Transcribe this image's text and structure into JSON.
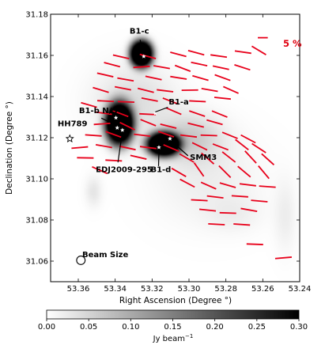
{
  "chart_data": {
    "type": "polarization-map",
    "xlabel": "Right Ascension (Degree °)",
    "ylabel": "Declination (Degree °)",
    "xlim": [
      53.375,
      53.24
    ],
    "ylim": [
      31.05,
      31.18
    ],
    "xticks": [
      53.36,
      53.34,
      53.32,
      53.3,
      53.28,
      53.26,
      53.24
    ],
    "xtick_labels": [
      "53.36",
      "53.34",
      "53.32",
      "53.30",
      "53.28",
      "53.26",
      "53.24"
    ],
    "yticks": [
      31.06,
      31.08,
      31.1,
      31.12,
      31.14,
      31.16,
      31.18
    ],
    "ytick_labels": [
      "31.06",
      "31.08",
      "31.10",
      "31.12",
      "31.14",
      "31.16",
      "31.18"
    ],
    "scale_label": "5 %",
    "beam_label": "Beam Size",
    "colorbar": {
      "min": 0.0,
      "max": 0.3,
      "ticks": [
        0.0,
        0.05,
        0.1,
        0.15,
        0.2,
        0.25,
        0.3
      ],
      "tick_labels": [
        "0.00",
        "0.05",
        "0.10",
        "0.15",
        "0.20",
        "0.25",
        "0.30"
      ],
      "label_main": "Jy beam",
      "label_sup": "−1",
      "colormap": "gray_r"
    },
    "intensity_blobs": [
      {
        "ra": 53.326,
        "dec": 31.161,
        "peak": 0.3,
        "sigma_ra": 0.0045,
        "sigma_dec": 0.0048
      },
      {
        "ra": 53.338,
        "dec": 31.127,
        "peak": 0.3,
        "sigma_ra": 0.0055,
        "sigma_dec": 0.0075
      },
      {
        "ra": 53.314,
        "dec": 31.117,
        "peak": 0.3,
        "sigma_ra": 0.0065,
        "sigma_dec": 0.0042
      },
      {
        "ra": 53.3,
        "dec": 31.12,
        "peak": 0.06,
        "sigma_ra": 0.012,
        "sigma_dec": 0.008
      },
      {
        "ra": 53.33,
        "dec": 31.138,
        "peak": 0.04,
        "sigma_ra": 0.015,
        "sigma_dec": 0.012
      },
      {
        "ra": 53.29,
        "dec": 31.1,
        "peak": 0.02,
        "sigma_ra": 0.02,
        "sigma_dec": 0.015
      },
      {
        "ra": 53.352,
        "dec": 31.094,
        "peak": 0.03,
        "sigma_ra": 0.003,
        "sigma_dec": 0.005
      },
      {
        "ra": 53.248,
        "dec": 31.082,
        "peak": 0.02,
        "sigma_ra": 0.004,
        "sigma_dec": 0.012
      },
      {
        "ra": 53.276,
        "dec": 31.083,
        "peak": 0.015,
        "sigma_ra": 0.01,
        "sigma_dec": 0.006
      }
    ],
    "sources": [
      {
        "name": "B1-c",
        "stars": [
          {
            "ra": 53.3245,
            "dec": 31.1595
          }
        ],
        "text": {
          "ra": 53.3322,
          "dec": 31.1706
        },
        "line": [
          {
            "ra": 53.3265,
            "dec": 31.1676
          },
          {
            "ra": 53.3245,
            "dec": 31.1605
          }
        ]
      },
      {
        "name": "B1-a",
        "stars": [
          {
            "ra": 53.3183,
            "dec": 31.1318
          }
        ],
        "text": {
          "ra": 53.311,
          "dec": 31.1362
        },
        "line": [
          {
            "ra": 53.3114,
            "dec": 31.1348
          },
          {
            "ra": 53.3183,
            "dec": 31.1325
          }
        ]
      },
      {
        "name": "B1-b N/S",
        "stars": [
          {
            "ra": 53.3396,
            "dec": 31.1297
          },
          {
            "ra": 53.3389,
            "dec": 31.1248
          }
        ],
        "text": {
          "ra": 53.3596,
          "dec": 31.132
        },
        "line": [
          {
            "ra": 53.3475,
            "dec": 31.1295
          },
          {
            "ra": 53.3405,
            "dec": 31.1265
          }
        ]
      },
      {
        "name": "HH789",
        "stars": [
          {
            "ra": 53.3646,
            "dec": 31.1195
          }
        ],
        "text": {
          "ra": 53.3712,
          "dec": 31.1255
        },
        "line": []
      },
      {
        "name": "EDJ2009-295",
        "stars": [
          {
            "ra": 53.3361,
            "dec": 31.1237
          }
        ],
        "text": {
          "ra": 53.3505,
          "dec": 31.1032
        },
        "line": [
          {
            "ra": 53.3385,
            "dec": 31.108
          },
          {
            "ra": 53.3365,
            "dec": 31.1205
          }
        ]
      },
      {
        "name": "SMM3",
        "stars": [
          {
            "ra": 53.3103,
            "dec": 31.1195
          }
        ],
        "text": {
          "ra": 53.2995,
          "dec": 31.1092
        },
        "line": [
          {
            "ra": 53.3005,
            "dec": 31.1112
          },
          {
            "ra": 53.3085,
            "dec": 31.1175
          }
        ]
      },
      {
        "name": "B1-d",
        "stars": [
          {
            "ra": 53.3163,
            "dec": 31.1153
          }
        ],
        "text": {
          "ra": 53.3208,
          "dec": 31.1032
        },
        "line": [
          {
            "ra": 53.3165,
            "dec": 31.1062
          },
          {
            "ra": 53.3163,
            "dec": 31.1135
          }
        ]
      }
    ],
    "scale_bar": {
      "ra1": 53.2627,
      "ra2": 53.2573,
      "dec": 31.1686
    },
    "beam": {
      "ra": 53.3586,
      "dec": 31.0604,
      "radius_ra": 0.0023
    },
    "vectors": [
      {
        "ra": 53.3368,
        "dec": 31.1593,
        "pa": -13
      },
      {
        "ra": 53.3223,
        "dec": 31.1595,
        "pa": -15
      },
      {
        "ra": 53.3058,
        "dec": 31.1605,
        "pa": -15
      },
      {
        "ra": 53.2961,
        "dec": 31.1613,
        "pa": -15
      },
      {
        "ra": 53.2839,
        "dec": 31.1597,
        "pa": -8
      },
      {
        "ra": 53.2707,
        "dec": 31.1616,
        "pa": -8
      },
      {
        "ra": 53.2621,
        "dec": 31.1624,
        "pa": -31
      },
      {
        "ra": 53.3417,
        "dec": 31.1555,
        "pa": -15
      },
      {
        "ra": 53.3257,
        "dec": 31.1544,
        "pa": 4
      },
      {
        "ra": 53.3148,
        "dec": 31.1543,
        "pa": -10
      },
      {
        "ra": 53.3034,
        "dec": 31.1537,
        "pa": -21
      },
      {
        "ra": 53.2945,
        "dec": 31.1558,
        "pa": -12
      },
      {
        "ra": 53.2827,
        "dec": 31.154,
        "pa": -12
      },
      {
        "ra": 53.2711,
        "dec": 31.1542,
        "pa": -18
      },
      {
        "ra": 53.3454,
        "dec": 31.1505,
        "pa": -13
      },
      {
        "ra": 53.3344,
        "dec": 31.1483,
        "pa": -10
      },
      {
        "ra": 53.3192,
        "dec": 31.149,
        "pa": -12
      },
      {
        "ra": 53.3057,
        "dec": 31.1491,
        "pa": -9
      },
      {
        "ra": 53.2938,
        "dec": 31.149,
        "pa": -16
      },
      {
        "ra": 53.2818,
        "dec": 31.1492,
        "pa": -20
      },
      {
        "ra": 53.3478,
        "dec": 31.1432,
        "pa": -17
      },
      {
        "ra": 53.3358,
        "dec": 31.144,
        "pa": -11
      },
      {
        "ra": 53.3234,
        "dec": 31.143,
        "pa": -14
      },
      {
        "ra": 53.313,
        "dec": 31.1428,
        "pa": -7
      },
      {
        "ra": 53.2995,
        "dec": 31.1431,
        "pa": 1
      },
      {
        "ra": 53.2888,
        "dec": 31.1432,
        "pa": -10
      },
      {
        "ra": 53.2773,
        "dec": 31.1432,
        "pa": -24
      },
      {
        "ra": 53.3542,
        "dec": 31.1359,
        "pa": -16
      },
      {
        "ra": 53.3452,
        "dec": 31.1378,
        "pa": -3
      },
      {
        "ra": 53.3341,
        "dec": 31.1374,
        "pa": -2
      },
      {
        "ra": 53.3213,
        "dec": 31.1385,
        "pa": -11
      },
      {
        "ra": 53.31,
        "dec": 31.1378,
        "pa": -21
      },
      {
        "ra": 53.2954,
        "dec": 31.1377,
        "pa": -3
      },
      {
        "ra": 53.2818,
        "dec": 31.1392,
        "pa": -6
      },
      {
        "ra": 53.3462,
        "dec": 31.1319,
        "pa": -8
      },
      {
        "ra": 53.3371,
        "dec": 31.1317,
        "pa": -21
      },
      {
        "ra": 53.3224,
        "dec": 31.1314,
        "pa": -3
      },
      {
        "ra": 53.3083,
        "dec": 31.1329,
        "pa": -23
      },
      {
        "ra": 53.2956,
        "dec": 31.1317,
        "pa": -19
      },
      {
        "ra": 53.2834,
        "dec": 31.1315,
        "pa": -22
      },
      {
        "ra": 53.3471,
        "dec": 31.1267,
        "pa": 4
      },
      {
        "ra": 53.3334,
        "dec": 31.1256,
        "pa": -26
      },
      {
        "ra": 53.3221,
        "dec": 31.1273,
        "pa": -22
      },
      {
        "ra": 53.3112,
        "dec": 31.1256,
        "pa": -14
      },
      {
        "ra": 53.2963,
        "dec": 31.1261,
        "pa": -14
      },
      {
        "ra": 53.2861,
        "dec": 31.1275,
        "pa": -16
      },
      {
        "ra": 53.3518,
        "dec": 31.1211,
        "pa": -4
      },
      {
        "ra": 53.3409,
        "dec": 31.1216,
        "pa": -20
      },
      {
        "ra": 53.3254,
        "dec": 31.1212,
        "pa": -7
      },
      {
        "ra": 53.3124,
        "dec": 31.1217,
        "pa": -19
      },
      {
        "ra": 53.3002,
        "dec": 31.1208,
        "pa": -7
      },
      {
        "ra": 53.2892,
        "dec": 31.1211,
        "pa": -2
      },
      {
        "ra": 53.2778,
        "dec": 31.1211,
        "pa": -22
      },
      {
        "ra": 53.2679,
        "dec": 31.1194,
        "pa": -28
      },
      {
        "ra": 53.3592,
        "dec": 31.1152,
        "pa": 5
      },
      {
        "ra": 53.3461,
        "dec": 31.1159,
        "pa": -10
      },
      {
        "ra": 53.3333,
        "dec": 31.115,
        "pa": -12
      },
      {
        "ra": 53.3221,
        "dec": 31.1152,
        "pa": -7
      },
      {
        "ra": 53.3097,
        "dec": 31.115,
        "pa": -23
      },
      {
        "ra": 53.2942,
        "dec": 31.1158,
        "pa": -26
      },
      {
        "ra": 53.2829,
        "dec": 31.1155,
        "pa": -21
      },
      {
        "ra": 53.2713,
        "dec": 31.1166,
        "pa": -38
      },
      {
        "ra": 53.2621,
        "dec": 31.1149,
        "pa": -33
      },
      {
        "ra": 53.3562,
        "dec": 31.1102,
        "pa": -1
      },
      {
        "ra": 53.3408,
        "dec": 31.1089,
        "pa": -3
      },
      {
        "ra": 53.3274,
        "dec": 31.1105,
        "pa": -13
      },
      {
        "ra": 53.3012,
        "dec": 31.1101,
        "pa": -30
      },
      {
        "ra": 53.2899,
        "dec": 31.1099,
        "pa": -41
      },
      {
        "ra": 53.2784,
        "dec": 31.1106,
        "pa": -38
      },
      {
        "ra": 53.2666,
        "dec": 31.1106,
        "pa": -47
      },
      {
        "ra": 53.2573,
        "dec": 31.1095,
        "pa": -42
      },
      {
        "ra": 53.3484,
        "dec": 31.1042,
        "pa": -24
      },
      {
        "ra": 53.3055,
        "dec": 31.1031,
        "pa": -30
      },
      {
        "ra": 53.2946,
        "dec": 31.1045,
        "pa": -55
      },
      {
        "ra": 53.2806,
        "dec": 31.1035,
        "pa": -45
      },
      {
        "ra": 53.2701,
        "dec": 31.1035,
        "pa": -40
      },
      {
        "ra": 53.2595,
        "dec": 31.1032,
        "pa": -50
      },
      {
        "ra": 53.3009,
        "dec": 31.0979,
        "pa": -28
      },
      {
        "ra": 53.2894,
        "dec": 31.0967,
        "pa": -24
      },
      {
        "ra": 53.279,
        "dec": 31.0969,
        "pa": -16
      },
      {
        "ra": 53.2681,
        "dec": 31.0971,
        "pa": -7
      },
      {
        "ra": 53.2575,
        "dec": 31.0962,
        "pa": -4
      },
      {
        "ra": 53.2944,
        "dec": 31.0896,
        "pa": -3
      },
      {
        "ra": 53.2858,
        "dec": 31.0912,
        "pa": -7
      },
      {
        "ra": 53.2724,
        "dec": 31.0915,
        "pa": -4
      },
      {
        "ra": 53.2619,
        "dec": 31.0892,
        "pa": -5
      },
      {
        "ra": 53.2899,
        "dec": 31.0848,
        "pa": -6
      },
      {
        "ra": 53.2789,
        "dec": 31.0834,
        "pa": -2
      },
      {
        "ra": 53.2675,
        "dec": 31.0849,
        "pa": -10
      },
      {
        "ra": 53.2851,
        "dec": 31.0779,
        "pa": -3
      },
      {
        "ra": 53.2714,
        "dec": 31.0778,
        "pa": -4
      },
      {
        "ra": 53.2643,
        "dec": 31.0682,
        "pa": -2
      },
      {
        "ra": 53.2488,
        "dec": 31.0616,
        "pa": 5
      }
    ]
  }
}
